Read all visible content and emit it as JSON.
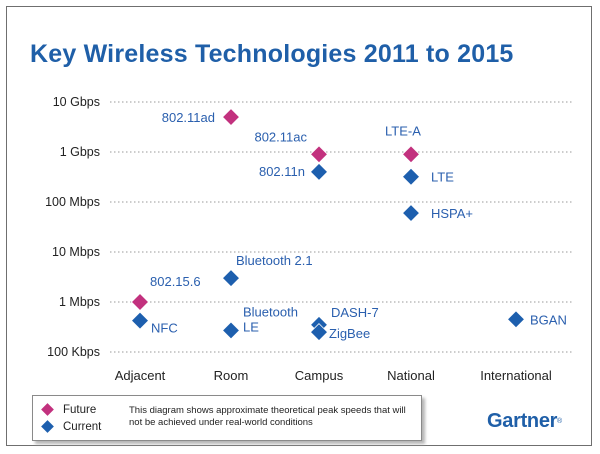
{
  "chart_data": {
    "type": "scatter",
    "title": "Key Wireless Technologies 2011 to 2015",
    "xlabel": "",
    "ylabel": "",
    "categories": [
      "Adjacent",
      "Room",
      "Campus",
      "National",
      "International"
    ],
    "y_scale": "log",
    "y_unit": "bps",
    "y_ticks": [
      {
        "label": "10 Gbps",
        "value": 10000000000
      },
      {
        "label": "1 Gbps",
        "value": 1000000000
      },
      {
        "label": "100 Mbps",
        "value": 100000000
      },
      {
        "label": "10 Mbps",
        "value": 10000000
      },
      {
        "label": "1 Mbps",
        "value": 1000000
      },
      {
        "label": "100 Kbps",
        "value": 100000
      }
    ],
    "ylim": [
      100000,
      10000000000
    ],
    "grid": true,
    "series": [
      {
        "name": "Future",
        "color": "#c2317e",
        "points": [
          {
            "label": "802.11ad",
            "category": "Room",
            "value": 5000000000
          },
          {
            "label": "802.11ac",
            "category": "Campus",
            "value": 900000000
          },
          {
            "label": "LTE-A",
            "category": "National",
            "value": 900000000
          },
          {
            "label": "802.15.6",
            "category": "Adjacent",
            "value": 1000000
          }
        ]
      },
      {
        "name": "Current",
        "color": "#1d5fae",
        "points": [
          {
            "label": "802.11n",
            "category": "Campus",
            "value": 400000000
          },
          {
            "label": "LTE",
            "category": "National",
            "value": 320000000
          },
          {
            "label": "HSPA+",
            "category": "National",
            "value": 60000000
          },
          {
            "label": "Bluetooth 2.1",
            "category": "Room",
            "value": 3000000
          },
          {
            "label": "NFC",
            "category": "Adjacent",
            "value": 424000
          },
          {
            "label": "Bluetooth LE",
            "category": "Room",
            "value": 270000
          },
          {
            "label": "DASH-7",
            "category": "Campus",
            "value": 350000
          },
          {
            "label": "ZigBee",
            "category": "Campus",
            "value": 250000
          },
          {
            "label": "BGAN",
            "category": "International",
            "value": 450000
          }
        ]
      }
    ],
    "legend": {
      "placement": "bottom-left"
    },
    "note": "This diagram shows approximate theoretical peak speeds that will not be achieved under real-world conditions"
  },
  "logo": "Gartner"
}
